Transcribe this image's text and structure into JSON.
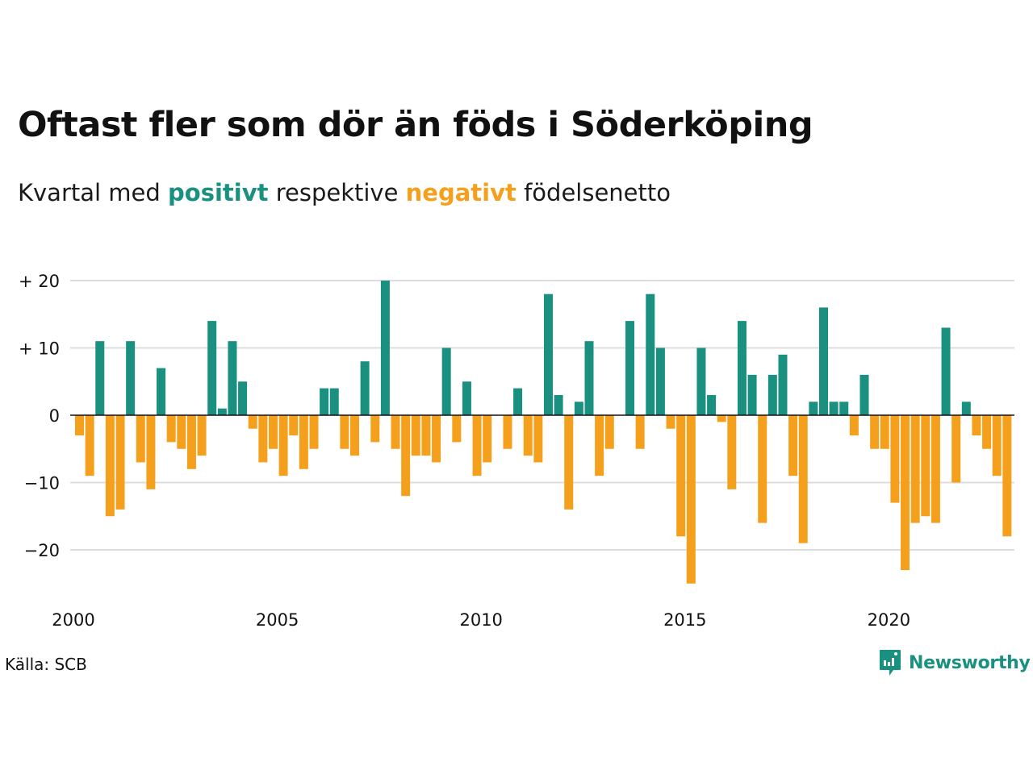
{
  "title": "Oftast fler som dör än föds i Söderköping",
  "subtitle": {
    "prefix": "Kvartal med ",
    "positive": "positivt",
    "middle": " respektive ",
    "negative": "negativt",
    "suffix": " födelsenetto"
  },
  "source": "Källa: SCB",
  "brand": "Newsworthy",
  "colors": {
    "positive": "#1a9080",
    "negative": "#f5a01c",
    "grid": "#dddddd",
    "baseline": "#111111"
  },
  "chart_data": {
    "type": "bar",
    "title": "Oftast fler som dör än föds i Söderköping",
    "subtitle": "Kvartal med positivt respektive negativt födelsenetto",
    "xlabel": "",
    "ylabel": "",
    "x_start": "2000 Q1",
    "x_tick_labels": [
      "2000",
      "2005",
      "2010",
      "2015",
      "2020"
    ],
    "y_ticks": [
      20,
      10,
      0,
      -10,
      -20
    ],
    "y_tick_labels": [
      "+ 20",
      "+ 10",
      "0",
      "−10",
      "−20"
    ],
    "ylim": [
      -25,
      20
    ],
    "grid": true,
    "values": [
      -3,
      -9,
      11,
      -15,
      -14,
      11,
      -7,
      -11,
      7,
      -4,
      -5,
      -8,
      -6,
      14,
      1,
      11,
      5,
      -2,
      -7,
      -5,
      -9,
      -3,
      -8,
      -5,
      4,
      4,
      -5,
      -6,
      8,
      -4,
      20,
      -5,
      -12,
      -6,
      -6,
      -7,
      10,
      -4,
      5,
      -9,
      -7,
      0,
      -5,
      4,
      -6,
      -7,
      18,
      3,
      -14,
      2,
      11,
      -9,
      -5,
      0,
      14,
      -5,
      18,
      10,
      -2,
      -18,
      -25,
      10,
      3,
      -1,
      -11,
      14,
      6,
      -16,
      6,
      9,
      -9,
      -19,
      2,
      16,
      2,
      2,
      -3,
      6,
      -5,
      -5,
      -13,
      -23,
      -16,
      -15,
      -16,
      13,
      -10,
      2,
      -3,
      -5,
      -9,
      -18
    ]
  }
}
